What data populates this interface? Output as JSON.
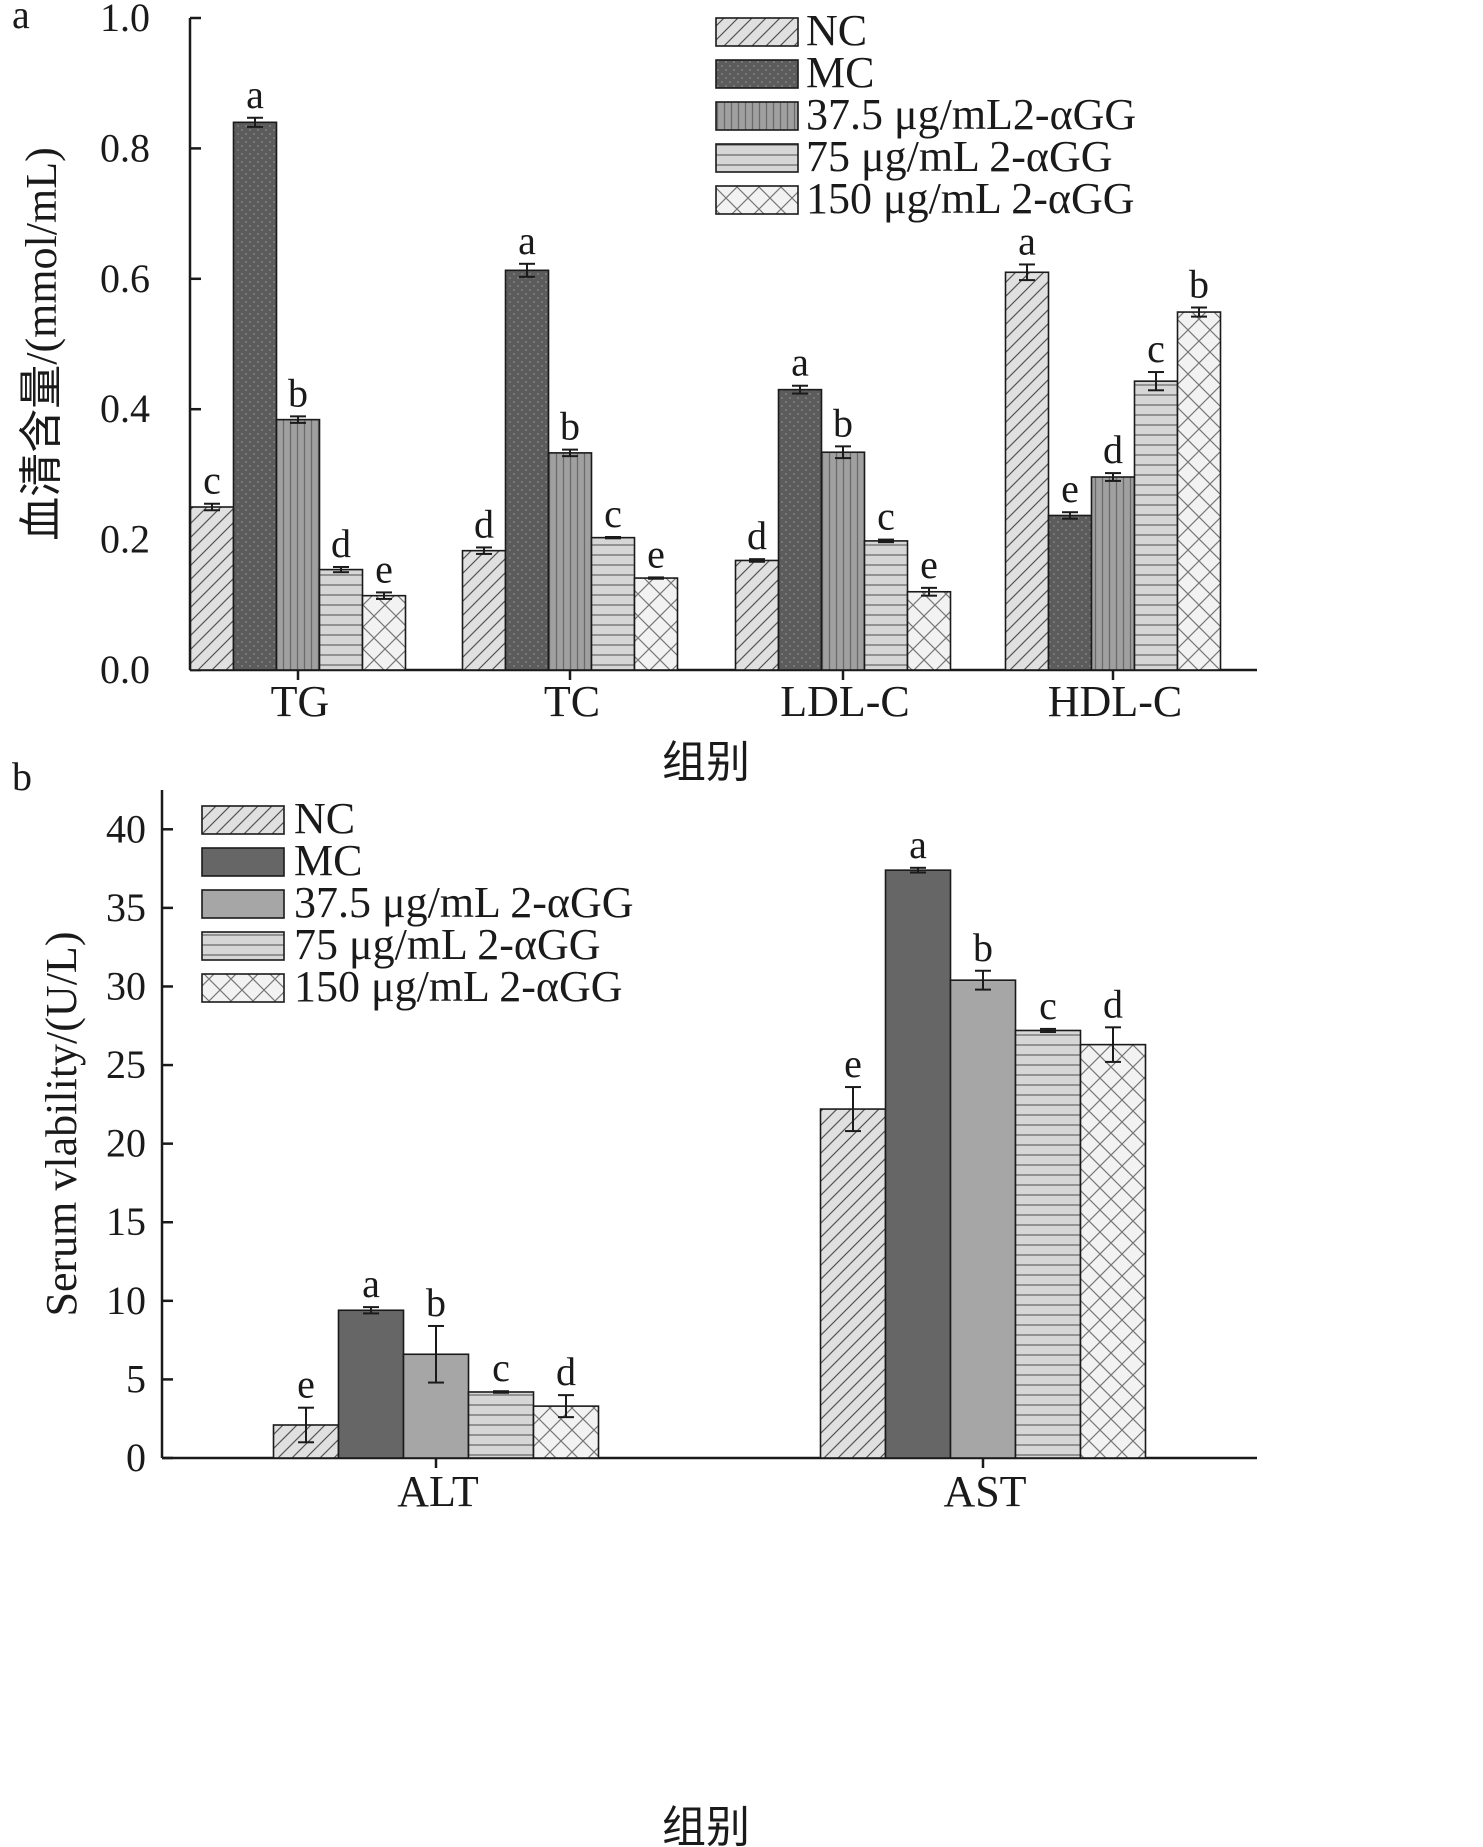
{
  "chart_data": [
    {
      "type": "bar",
      "panel": "a",
      "categories": [
        "TG",
        "TC",
        "LDL-C",
        "HDL-C"
      ],
      "xlabel": "组别",
      "ylabel": "血清含量/(mmol/mL)",
      "ylim": [
        0,
        1.0
      ],
      "yticks": [
        "0.0",
        "0.2",
        "0.4",
        "0.6",
        "0.8",
        "1.0"
      ],
      "legend_position": "top-right",
      "series": [
        {
          "name": "NC",
          "pattern": "hatch-diag",
          "values": [
            0.25,
            0.183,
            0.168,
            0.61
          ],
          "errors": [
            0.005,
            0.005,
            0.002,
            0.012
          ],
          "letters": [
            "c",
            "d",
            "d",
            "a"
          ]
        },
        {
          "name": "MC",
          "pattern": "dark-dots",
          "values": [
            0.84,
            0.613,
            0.43,
            0.237
          ],
          "errors": [
            0.007,
            0.01,
            0.006,
            0.005
          ],
          "letters": [
            "a",
            "a",
            "a",
            "e"
          ]
        },
        {
          "name": "37.5 μg/mL2-αGG",
          "pattern": "vertical-lines",
          "values": [
            0.384,
            0.333,
            0.334,
            0.296
          ],
          "errors": [
            0.005,
            0.005,
            0.009,
            0.006
          ],
          "letters": [
            "b",
            "b",
            "b",
            "d"
          ]
        },
        {
          "name": "75 μg/mL 2-αGG",
          "pattern": "horizontal-lines",
          "values": [
            0.154,
            0.203,
            0.198,
            0.443
          ],
          "errors": [
            0.004,
            0.001,
            0.002,
            0.014
          ],
          "letters": [
            "d",
            "c",
            "c",
            "c"
          ]
        },
        {
          "name": "150 μg/mL 2-αGG",
          "pattern": "crosshatch",
          "values": [
            0.114,
            0.141,
            0.12,
            0.549
          ],
          "errors": [
            0.005,
            0.001,
            0.006,
            0.007
          ],
          "letters": [
            "e",
            "e",
            "e",
            "b"
          ]
        }
      ]
    },
    {
      "type": "bar",
      "panel": "b",
      "categories": [
        "ALT",
        "AST"
      ],
      "xlabel": "组别",
      "ylabel": "Serum vlability/(U/L)",
      "ylim": [
        0,
        42.5
      ],
      "yticks": [
        "0",
        "5",
        "10",
        "15",
        "20",
        "25",
        "30",
        "35",
        "40"
      ],
      "legend_position": "top-left",
      "series": [
        {
          "name": "NC",
          "pattern": "hatch-diag",
          "values": [
            2.1,
            22.2
          ],
          "errors": [
            1.1,
            1.4
          ],
          "letters": [
            "e",
            "e"
          ]
        },
        {
          "name": "MC",
          "pattern": "dark-solid",
          "values": [
            9.4,
            37.4
          ],
          "errors": [
            0.2,
            0.15
          ],
          "letters": [
            "a",
            "a"
          ]
        },
        {
          "name": "37.5 μg/mL 2-αGG",
          "pattern": "gray-solid",
          "values": [
            6.6,
            30.4
          ],
          "errors": [
            1.8,
            0.6
          ],
          "letters": [
            "b",
            "b"
          ]
        },
        {
          "name": "75 μg/mL 2-αGG",
          "pattern": "horizontal-lines",
          "values": [
            4.2,
            27.2
          ],
          "errors": [
            0.05,
            0.1
          ],
          "letters": [
            "c",
            "c"
          ]
        },
        {
          "name": "150 μg/mL 2-αGG",
          "pattern": "crosshatch",
          "values": [
            3.3,
            26.3
          ],
          "errors": [
            0.7,
            1.1
          ],
          "letters": [
            "d",
            "d"
          ]
        }
      ]
    }
  ]
}
